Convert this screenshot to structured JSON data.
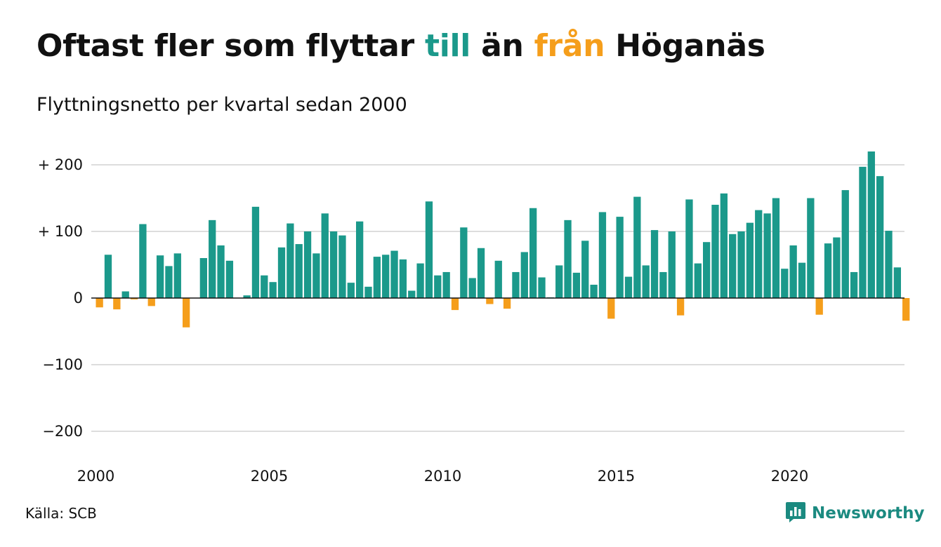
{
  "header": {
    "title_pre": "Oftast fler som flyttar",
    "title_pos": "till",
    "title_mid": "än",
    "title_neg": "från",
    "title_post": "Höganäs",
    "subtitle": "Flyttningsnetto per kvartal sedan 2000"
  },
  "footer": {
    "source": "Källa: SCB",
    "brand": "Newsworthy"
  },
  "colors": {
    "positive": "#1b998b",
    "negative": "#f59e1b",
    "grid": "#dddddd",
    "baseline": "#111111",
    "brand": "#1b8a80"
  },
  "chart_data": {
    "type": "bar",
    "title": "Oftast fler som flyttar till än från Höganäs",
    "subtitle": "Flyttningsnetto per kvartal sedan 2000",
    "x_start_year": 2000,
    "periods_per_year": 4,
    "ylim": [
      -200,
      200
    ],
    "y_ticks": [
      200,
      100,
      0,
      -100,
      -200
    ],
    "y_tick_labels": [
      "+ 200",
      "+ 100",
      "0",
      "−100",
      "−200"
    ],
    "x_ticks": [
      2000,
      2005,
      2010,
      2015,
      2020
    ],
    "x_tick_labels": [
      "2000",
      "2005",
      "2010",
      "2015",
      "2020"
    ],
    "grid": true,
    "legend": "none",
    "values": [
      -14,
      65,
      -17,
      10,
      -2,
      111,
      -12,
      64,
      48,
      67,
      -44,
      0,
      60,
      117,
      79,
      56,
      0,
      4,
      137,
      34,
      24,
      76,
      112,
      81,
      100,
      67,
      127,
      100,
      94,
      23,
      115,
      17,
      62,
      65,
      71,
      58,
      11,
      52,
      145,
      34,
      39,
      -18,
      106,
      30,
      75,
      -9,
      56,
      -16,
      39,
      69,
      135,
      31,
      1,
      49,
      117,
      38,
      86,
      20,
      129,
      -31,
      122,
      32,
      152,
      49,
      102,
      39,
      100,
      -26,
      148,
      52,
      84,
      140,
      157,
      96,
      100,
      113,
      132,
      127,
      150,
      44,
      79,
      53,
      150,
      -25,
      82,
      91,
      162,
      39,
      197,
      220,
      183,
      101,
      46,
      -34
    ]
  }
}
